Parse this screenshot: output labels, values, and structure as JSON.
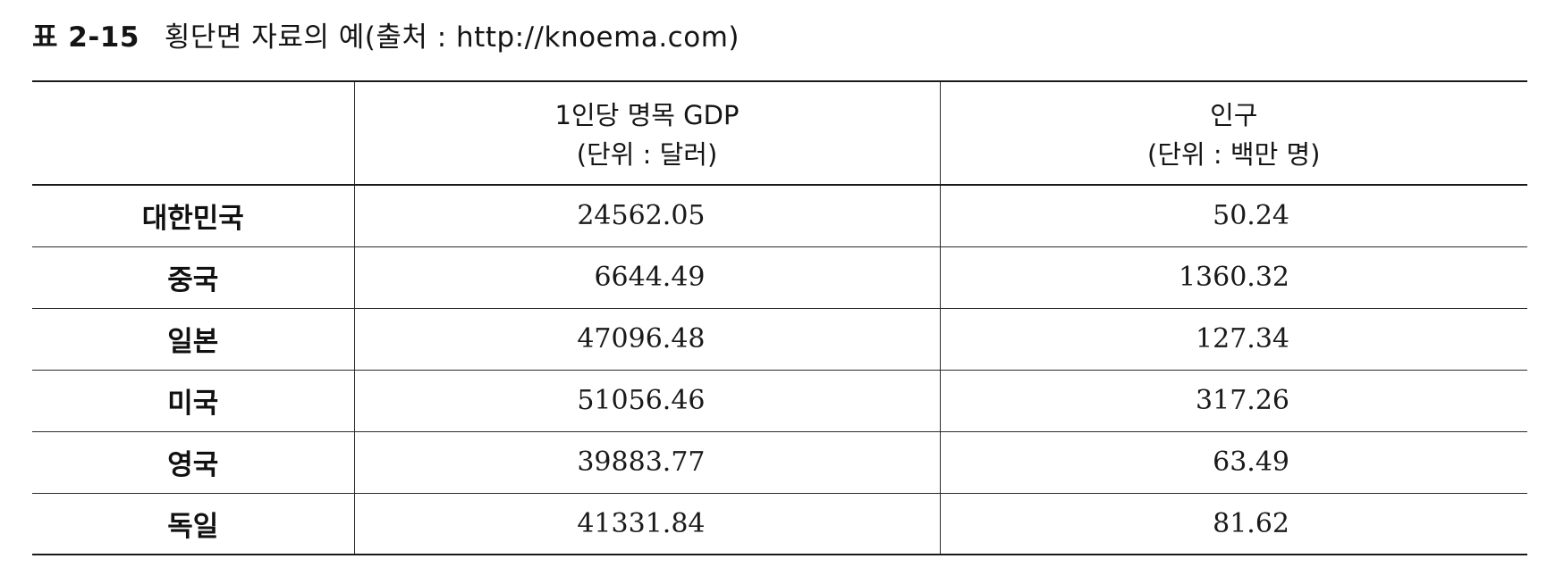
{
  "caption": {
    "label": "표 2-15",
    "title": "횡단면 자료의 예(출처 : http://knoema.com)"
  },
  "table": {
    "columns": [
      {
        "line1": "",
        "line2": ""
      },
      {
        "line1": "1인당 명목 GDP",
        "line2": "(단위 : 달러)"
      },
      {
        "line1": "인구",
        "line2": "(단위 : 백만 명)"
      }
    ],
    "rows": [
      {
        "country": "대한민국",
        "gdp": "24562.05",
        "population": "50.24"
      },
      {
        "country": "중국",
        "gdp": "6644.49",
        "population": "1360.32"
      },
      {
        "country": "일본",
        "gdp": "47096.48",
        "population": "127.34"
      },
      {
        "country": "미국",
        "gdp": "51056.46",
        "population": "317.26"
      },
      {
        "country": "영국",
        "gdp": "39883.77",
        "population": "63.49"
      },
      {
        "country": "독일",
        "gdp": "41331.84",
        "population": "81.62"
      }
    ]
  }
}
